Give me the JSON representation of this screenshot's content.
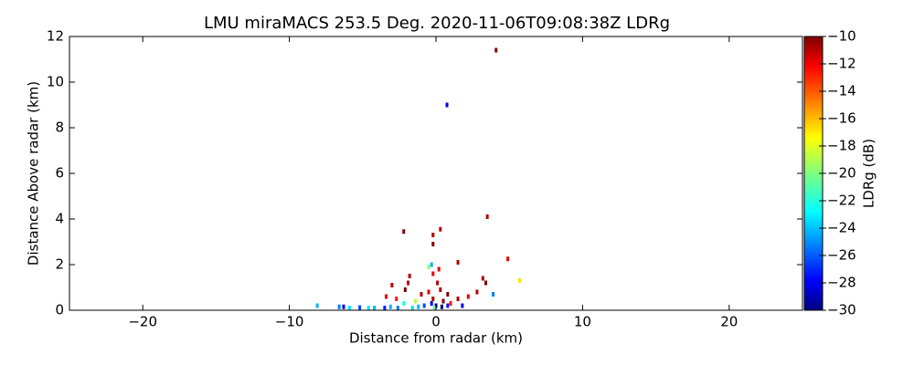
{
  "chart_data": {
    "type": "scatter",
    "title": "LMU miraMACS 253.5 Deg. 2020-11-06T09:08:38Z  LDRg",
    "xlabel": "Distance from radar (km)",
    "ylabel": "Distance Above radar  (km)",
    "xlim": [
      -25,
      25
    ],
    "xticks": [
      {
        "value": -20,
        "label": "−20"
      },
      {
        "value": -10,
        "label": "−10"
      },
      0,
      10,
      20
    ],
    "ylim": [
      0,
      12
    ],
    "yticks": [
      0,
      2,
      4,
      6,
      8,
      10,
      12
    ],
    "colormap": "jet",
    "colorbar": {
      "label": "LDRg (dB)",
      "lim": [
        -30,
        -10
      ],
      "ticks": [
        {
          "value": -30,
          "label": "−30"
        },
        {
          "value": -28,
          "label": "−28"
        },
        {
          "value": -26,
          "label": "−26"
        },
        {
          "value": -24,
          "label": "−24"
        },
        {
          "value": -22,
          "label": "−22"
        },
        {
          "value": -20,
          "label": "−20"
        },
        {
          "value": -18,
          "label": "−18"
        },
        {
          "value": -16,
          "label": "−16"
        },
        {
          "value": -14,
          "label": "−14"
        },
        {
          "value": -12,
          "label": "−12"
        },
        {
          "value": -10,
          "label": "−10"
        }
      ]
    },
    "x": [
      4.1,
      0.75,
      3.5,
      0.3,
      -2.2,
      -0.2,
      -0.2,
      4.9,
      1.5,
      -0.3,
      -0.5,
      -0.2,
      -1.8,
      -1.9,
      -2.1,
      -3.0,
      -3.4,
      -2.7,
      3.2,
      3.4,
      5.7,
      2.8,
      2.2,
      1.5,
      0.8,
      0.3,
      -0.5,
      -1.0,
      -0.2,
      0.5,
      1.0,
      3.9,
      -0.3,
      0.0,
      0.4,
      0.8,
      -0.8,
      -1.2,
      -1.6,
      -2.2,
      -2.6,
      -3.1,
      -3.5,
      -4.2,
      -4.6,
      -5.2,
      -5.9,
      -6.3,
      -6.6,
      -8.1,
      0.1,
      0.2,
      -0.1,
      1.8,
      -1.4
    ],
    "y": [
      11.4,
      9.0,
      4.1,
      3.55,
      3.45,
      3.3,
      2.9,
      2.25,
      2.1,
      2.0,
      1.9,
      1.6,
      1.5,
      1.2,
      0.9,
      1.1,
      0.6,
      0.5,
      1.4,
      1.2,
      1.3,
      0.8,
      0.6,
      0.5,
      0.7,
      0.9,
      0.8,
      0.7,
      0.5,
      0.4,
      0.3,
      0.7,
      0.3,
      0.2,
      0.15,
      0.2,
      0.2,
      0.15,
      0.1,
      0.3,
      0.1,
      0.15,
      0.1,
      0.1,
      0.1,
      0.12,
      0.1,
      0.15,
      0.15,
      0.2,
      1.2,
      1.8,
      0.1,
      0.2,
      0.4
    ],
    "c": [
      -10,
      -28,
      -11,
      -11,
      -10,
      -11,
      -10,
      -12,
      -11,
      -24,
      -20,
      -12,
      -11,
      -11,
      -10,
      -11,
      -12,
      -13,
      -11,
      -10,
      -17,
      -11,
      -12,
      -11,
      -10,
      -11,
      -12,
      -11,
      -11,
      -10,
      -13,
      -25,
      -28,
      -29,
      -30,
      -27,
      -26,
      -24,
      -23,
      -22,
      -25,
      -24,
      -27,
      -24,
      -23,
      -26,
      -23,
      -28,
      -25,
      -24,
      -11,
      -12,
      -21,
      -28,
      -19
    ]
  }
}
